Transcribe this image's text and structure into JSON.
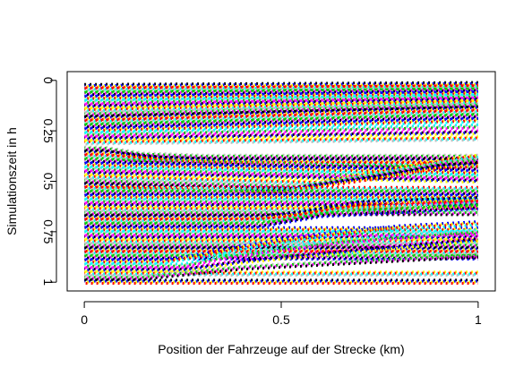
{
  "chart_data": {
    "type": "line",
    "title": "",
    "xlabel": "Position der Fahrzeuge auf der Strecke (km)",
    "ylabel": "Simulationszeit in h",
    "xlim": [
      0,
      1
    ],
    "ylim": [
      1,
      0
    ],
    "y_reversed": true,
    "x_ticks": [
      {
        "value": 0,
        "label": "0"
      },
      {
        "value": 0.5,
        "label": "0.5"
      },
      {
        "value": 1,
        "label": "1"
      }
    ],
    "y_ticks": [
      {
        "value": 0,
        "label": "0"
      },
      {
        "value": 0.25,
        "label": "0.25"
      },
      {
        "value": 0.5,
        "label": "0.5"
      },
      {
        "value": 0.75,
        "label": "0.75"
      },
      {
        "value": 1,
        "label": "1"
      }
    ],
    "line_style": "dotted",
    "palette": [
      "#000000",
      "#ff0000",
      "#00cd00",
      "#0000ff",
      "#00ffff",
      "#ff00ff",
      "#ffff00",
      "#bebebe"
    ],
    "series": [
      {
        "values": [
          [
            0.0,
            0.02
          ],
          [
            1.0,
            0.01
          ]
        ]
      },
      {
        "values": [
          [
            0.0,
            0.04
          ],
          [
            1.0,
            0.025
          ]
        ]
      },
      {
        "values": [
          [
            0.0,
            0.06
          ],
          [
            1.0,
            0.04
          ]
        ]
      },
      {
        "values": [
          [
            0.0,
            0.08
          ],
          [
            1.0,
            0.055
          ]
        ]
      },
      {
        "values": [
          [
            0.0,
            0.1
          ],
          [
            1.0,
            0.07
          ]
        ]
      },
      {
        "values": [
          [
            0.0,
            0.12
          ],
          [
            1.0,
            0.085
          ]
        ]
      },
      {
        "values": [
          [
            0.0,
            0.14
          ],
          [
            1.0,
            0.1
          ]
        ]
      },
      {
        "values": [
          [
            0.0,
            0.16
          ],
          [
            1.0,
            0.115
          ]
        ]
      },
      {
        "values": [
          [
            0.0,
            0.18
          ],
          [
            1.0,
            0.13
          ]
        ]
      },
      {
        "values": [
          [
            0.0,
            0.2
          ],
          [
            1.0,
            0.15
          ]
        ]
      },
      {
        "values": [
          [
            0.0,
            0.22
          ],
          [
            1.0,
            0.17
          ]
        ]
      },
      {
        "values": [
          [
            0.0,
            0.24
          ],
          [
            1.0,
            0.19
          ]
        ]
      },
      {
        "values": [
          [
            0.0,
            0.26
          ],
          [
            1.0,
            0.22
          ]
        ]
      },
      {
        "values": [
          [
            0.0,
            0.28
          ],
          [
            1.0,
            0.25
          ]
        ]
      },
      {
        "values": [
          [
            0.0,
            0.3
          ],
          [
            1.0,
            0.28
          ]
        ]
      },
      {
        "values": [
          [
            0.0,
            0.33
          ],
          [
            0.05,
            0.33
          ],
          [
            0.15,
            0.36
          ],
          [
            0.3,
            0.37
          ],
          [
            1.0,
            0.37
          ]
        ]
      },
      {
        "values": [
          [
            0.0,
            0.35
          ],
          [
            0.05,
            0.35
          ],
          [
            0.2,
            0.38
          ],
          [
            0.35,
            0.39
          ],
          [
            1.0,
            0.39
          ]
        ]
      },
      {
        "values": [
          [
            0.0,
            0.37
          ],
          [
            0.05,
            0.37
          ],
          [
            0.25,
            0.4
          ],
          [
            0.45,
            0.41
          ],
          [
            1.0,
            0.41
          ]
        ]
      },
      {
        "values": [
          [
            0.0,
            0.39
          ],
          [
            1.0,
            0.43
          ]
        ]
      },
      {
        "values": [
          [
            0.0,
            0.41
          ],
          [
            1.0,
            0.45
          ]
        ]
      },
      {
        "values": [
          [
            0.0,
            0.43
          ],
          [
            1.0,
            0.47
          ]
        ]
      },
      {
        "values": [
          [
            0.0,
            0.45
          ],
          [
            1.0,
            0.49
          ]
        ]
      },
      {
        "values": [
          [
            0.0,
            0.47
          ],
          [
            0.6,
            0.5
          ],
          [
            0.8,
            0.43
          ],
          [
            0.95,
            0.38
          ],
          [
            1.0,
            0.37
          ]
        ]
      },
      {
        "values": [
          [
            0.0,
            0.49
          ],
          [
            0.55,
            0.52
          ],
          [
            0.78,
            0.45
          ],
          [
            0.92,
            0.4
          ],
          [
            1.0,
            0.39
          ]
        ]
      },
      {
        "values": [
          [
            0.0,
            0.51
          ],
          [
            0.5,
            0.54
          ],
          [
            0.75,
            0.47
          ],
          [
            0.9,
            0.42
          ],
          [
            1.0,
            0.41
          ]
        ]
      },
      {
        "values": [
          [
            0.0,
            0.53
          ],
          [
            1.0,
            0.53
          ]
        ]
      },
      {
        "values": [
          [
            0.0,
            0.55
          ],
          [
            1.0,
            0.55
          ]
        ]
      },
      {
        "values": [
          [
            0.0,
            0.57
          ],
          [
            1.0,
            0.57
          ]
        ]
      },
      {
        "values": [
          [
            0.0,
            0.59
          ],
          [
            1.0,
            0.59
          ]
        ]
      },
      {
        "values": [
          [
            0.0,
            0.61
          ],
          [
            1.0,
            0.61
          ]
        ]
      },
      {
        "values": [
          [
            0.0,
            0.63
          ],
          [
            1.0,
            0.63
          ]
        ]
      },
      {
        "values": [
          [
            0.0,
            0.65
          ],
          [
            1.0,
            0.65
          ]
        ]
      },
      {
        "values": [
          [
            0.0,
            0.67
          ],
          [
            0.45,
            0.67
          ],
          [
            0.55,
            0.65
          ],
          [
            0.7,
            0.6
          ],
          [
            1.0,
            0.58
          ]
        ]
      },
      {
        "values": [
          [
            0.0,
            0.69
          ],
          [
            0.4,
            0.69
          ],
          [
            0.5,
            0.68
          ],
          [
            0.65,
            0.63
          ],
          [
            1.0,
            0.6
          ]
        ]
      },
      {
        "values": [
          [
            0.0,
            0.71
          ],
          [
            0.35,
            0.71
          ],
          [
            0.45,
            0.71
          ],
          [
            0.6,
            0.66
          ],
          [
            1.0,
            0.62
          ]
        ]
      },
      {
        "values": [
          [
            0.0,
            0.73
          ],
          [
            1.0,
            0.73
          ]
        ]
      },
      {
        "values": [
          [
            0.0,
            0.75
          ],
          [
            1.0,
            0.75
          ]
        ]
      },
      {
        "values": [
          [
            0.0,
            0.77
          ],
          [
            1.0,
            0.77
          ]
        ]
      },
      {
        "values": [
          [
            0.0,
            0.79
          ],
          [
            1.0,
            0.79
          ]
        ]
      },
      {
        "values": [
          [
            0.0,
            0.81
          ],
          [
            1.0,
            0.81
          ]
        ]
      },
      {
        "values": [
          [
            0.0,
            0.83
          ],
          [
            1.0,
            0.83
          ]
        ]
      },
      {
        "values": [
          [
            0.0,
            0.85
          ],
          [
            1.0,
            0.85
          ]
        ]
      },
      {
        "values": [
          [
            0.0,
            0.87
          ],
          [
            1.0,
            0.87
          ]
        ]
      },
      {
        "values": [
          [
            0.0,
            0.89
          ],
          [
            0.2,
            0.89
          ],
          [
            0.3,
            0.86
          ],
          [
            0.4,
            0.82
          ],
          [
            0.6,
            0.76
          ],
          [
            0.8,
            0.72
          ],
          [
            1.0,
            0.7
          ]
        ]
      },
      {
        "values": [
          [
            0.0,
            0.91
          ],
          [
            0.25,
            0.91
          ],
          [
            0.35,
            0.87
          ],
          [
            0.45,
            0.84
          ],
          [
            0.65,
            0.79
          ],
          [
            1.0,
            0.74
          ]
        ]
      },
      {
        "values": [
          [
            0.0,
            0.93
          ],
          [
            0.25,
            0.93
          ],
          [
            0.4,
            0.89
          ],
          [
            0.55,
            0.86
          ],
          [
            1.0,
            0.78
          ]
        ]
      },
      {
        "values": [
          [
            0.0,
            0.95
          ],
          [
            1.0,
            0.95
          ]
        ]
      },
      {
        "values": [
          [
            0.0,
            0.97
          ],
          [
            0.15,
            0.97
          ],
          [
            0.25,
            0.95
          ],
          [
            0.4,
            0.92
          ],
          [
            1.0,
            0.86
          ]
        ]
      },
      {
        "values": [
          [
            0.0,
            0.99
          ],
          [
            1.0,
            0.99
          ]
        ]
      }
    ]
  }
}
